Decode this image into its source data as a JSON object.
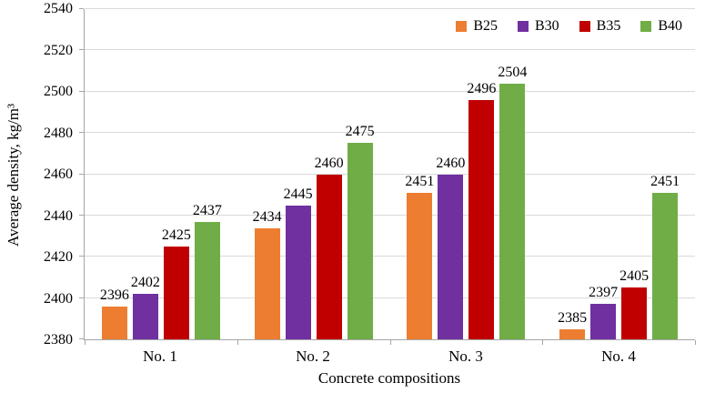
{
  "chart_data": {
    "type": "bar",
    "title": "",
    "xlabel": "Concrete compositions",
    "ylabel": "Average density, kg/m³",
    "categories": [
      "No. 1",
      "No. 2",
      "No. 3",
      "No. 4"
    ],
    "series": [
      {
        "name": "B25",
        "color": "#ED7D31",
        "values": [
          2396,
          2434,
          2451,
          2385
        ]
      },
      {
        "name": "B30",
        "color": "#7030A0",
        "values": [
          2402,
          2445,
          2460,
          2397
        ]
      },
      {
        "name": "B35",
        "color": "#C00000",
        "values": [
          2425,
          2460,
          2496,
          2405
        ]
      },
      {
        "name": "B40",
        "color": "#70AD47",
        "values": [
          2437,
          2475,
          2504,
          2451
        ]
      }
    ],
    "ylim": [
      2380,
      2540
    ],
    "ytick_step": 20,
    "ytick_labels": [
      "2380",
      "2400",
      "2420",
      "2440",
      "2460",
      "2480",
      "2500",
      "2520",
      "2540"
    ],
    "grid": true,
    "legend_position": "top-right",
    "axis_color": "#a6a6a6",
    "gridline_color": "#d9d9d9"
  }
}
